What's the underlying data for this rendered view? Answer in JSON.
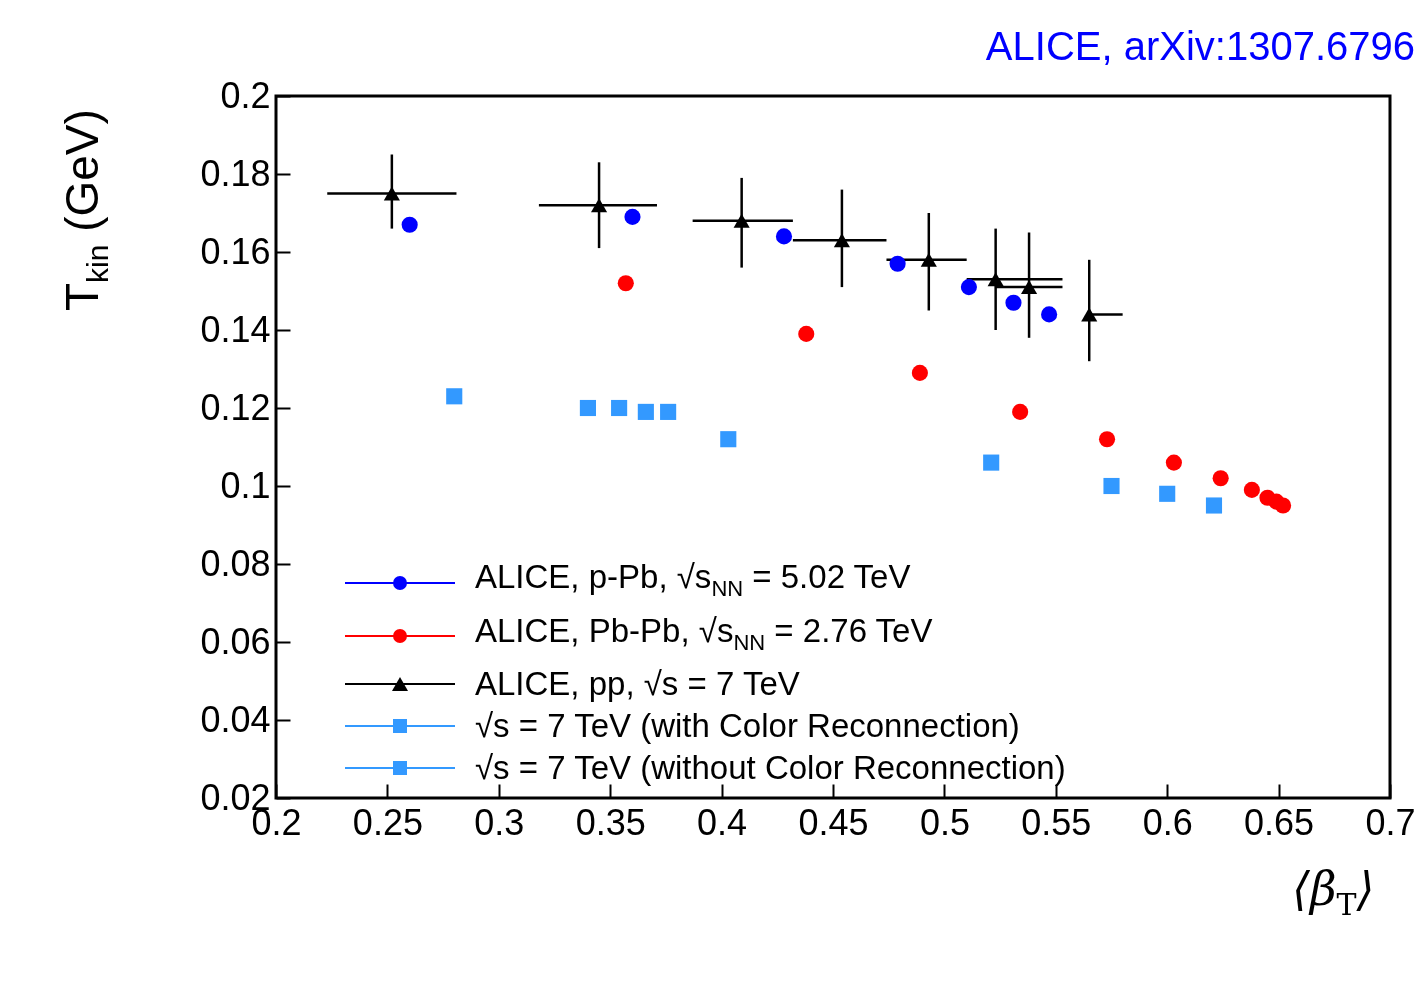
{
  "chart_data": {
    "type": "scatter",
    "xlabel": "⟨β$_{T}$⟩",
    "ylabel": "T$_{kin}$ (GeV)",
    "annotations": [
      "ALICE, arXiv:1307.6796"
    ],
    "xlim": [
      0.2,
      0.7
    ],
    "xticks": [
      0.2,
      0.25,
      0.3,
      0.35,
      0.4,
      0.45,
      0.5,
      0.55,
      0.6,
      0.65,
      0.7
    ],
    "ylim": [
      0.02,
      0.2
    ],
    "yticks": [
      0.02,
      0.04,
      0.06,
      0.08,
      0.1,
      0.12,
      0.14,
      0.16,
      0.18,
      0.2
    ],
    "grid": false,
    "legend": "bottom left",
    "series": [
      {
        "name": "ALICE, p-Pb, √s$_{NN}$ = 5.02 TeV",
        "color": "#0000ff",
        "marker": "circle",
        "x": [
          0.26,
          0.36,
          0.428,
          0.479,
          0.511,
          0.531,
          0.547
        ],
        "values": [
          0.167,
          0.169,
          0.164,
          0.157,
          0.151,
          0.147,
          0.144
        ]
      },
      {
        "name": "ALICE, Pb-Pb, √s$_{NN}$ = 2.76 TeV",
        "color": "#ff0000",
        "marker": "circle",
        "x": [
          0.357,
          0.438,
          0.489,
          0.534,
          0.573,
          0.603,
          0.624,
          0.638,
          0.645,
          0.649,
          0.652
        ],
        "values": [
          0.152,
          0.139,
          0.129,
          0.119,
          0.112,
          0.106,
          0.102,
          0.099,
          0.097,
          0.096,
          0.095
        ]
      },
      {
        "name": "ALICE, pp, √s = 7 TeV",
        "color": "#000000",
        "marker": "triangle",
        "x": [
          0.252,
          0.345,
          0.409,
          0.454,
          0.493,
          0.523,
          0.538,
          0.565
        ],
        "values": [
          0.175,
          0.172,
          0.168,
          0.163,
          0.158,
          0.153,
          0.151,
          0.144
        ],
        "xerrors": [
          [
            0.223,
            0.281
          ],
          [
            0.318,
            0.371
          ],
          [
            0.387,
            0.432
          ],
          [
            0.432,
            0.474
          ],
          [
            0.474,
            0.51
          ],
          [
            0.51,
            0.553
          ],
          [
            0.523,
            0.553
          ],
          [
            0.565,
            0.58
          ]
        ],
        "errors": [
          [
            0.166,
            0.185
          ],
          [
            0.161,
            0.183
          ],
          [
            0.156,
            0.179
          ],
          [
            0.151,
            0.176
          ],
          [
            0.145,
            0.17
          ],
          [
            0.14,
            0.166
          ],
          [
            0.138,
            0.165
          ],
          [
            0.132,
            0.158
          ]
        ]
      },
      {
        "name": "√s = 7 TeV (with Color Reconnection)",
        "color": "#3399ff",
        "marker": "square",
        "x": [
          0.403,
          0.521,
          0.575,
          0.6,
          0.621
        ],
        "values": [
          0.112,
          0.106,
          0.1,
          0.098,
          0.095
        ]
      },
      {
        "name": "√s = 7 TeV (without Color Reconnection)",
        "color": "#3399ff",
        "marker": "square",
        "x": [
          0.28,
          0.34,
          0.354,
          0.366,
          0.376
        ],
        "values": [
          0.123,
          0.12,
          0.12,
          0.119,
          0.119
        ]
      }
    ]
  }
}
